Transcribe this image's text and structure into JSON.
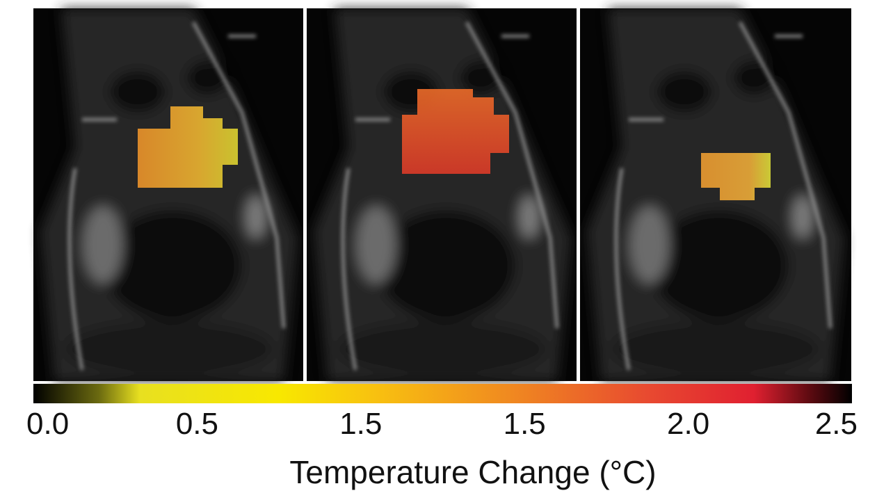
{
  "colorbar": {
    "labels": [
      "0.0",
      "0.5",
      "1.5",
      "1.5",
      "2.0",
      "2.5"
    ],
    "title": "Temperature Change (°C)"
  }
}
